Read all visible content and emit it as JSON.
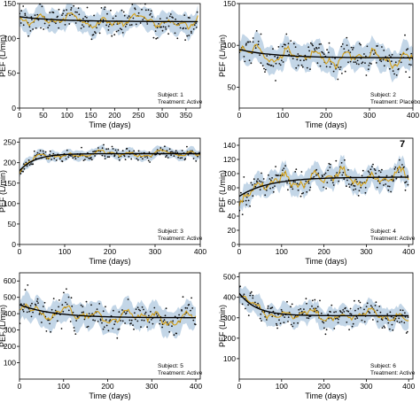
{
  "colors": {
    "band": "#b9cfe3",
    "points": "#111111",
    "smooth": "#d4a017",
    "fit": "#000000",
    "axis": "#000000"
  },
  "chart_data": [
    {
      "type": "scatter",
      "xlabel": "Time (days)",
      "ylabel": "PEF (L/min)",
      "xlim": [
        0,
        380
      ],
      "ylim": [
        0,
        150
      ],
      "xticks": [
        0,
        50,
        100,
        150,
        200,
        250,
        300,
        350
      ],
      "yticks": [
        0,
        50,
        100,
        150
      ],
      "annotations": [
        "Subject: 1",
        "Treatment: Active"
      ],
      "fit": {
        "start": 131,
        "end": 124,
        "rate": 0.012
      },
      "noise": 9,
      "spread": 14,
      "n_points": 190,
      "x_max_data": 375
    },
    {
      "type": "scatter",
      "xlabel": "Time (days)",
      "ylabel": "PEF (L/min)",
      "xlim": [
        0,
        400
      ],
      "ylim": [
        25,
        150
      ],
      "xticks": [
        0,
        100,
        200,
        300,
        400
      ],
      "yticks": [
        50,
        100,
        150
      ],
      "annotations": [
        "Subject: 2",
        "Treatment: Placebo"
      ],
      "fit": {
        "start": 95,
        "end": 85,
        "rate": 0.012
      },
      "noise": 9,
      "spread": 14,
      "n_points": 200,
      "x_max_data": 400
    },
    {
      "type": "scatter",
      "xlabel": "Time (days)",
      "ylabel": "PEF (L/min)",
      "xlim": [
        0,
        400
      ],
      "ylim": [
        0,
        260
      ],
      "xticks": [
        0,
        100,
        200,
        300,
        400
      ],
      "yticks": [
        0,
        50,
        100,
        150,
        200,
        250
      ],
      "annotations": [
        "Subject: 3",
        "Treatment: Active"
      ],
      "fit": {
        "start": 180,
        "end": 222,
        "rate": 0.03
      },
      "noise": 8,
      "spread": 11,
      "n_points": 190,
      "x_max_data": 400
    },
    {
      "type": "scatter",
      "xlabel": "Time (days)",
      "ylabel": "PEF (L/min)",
      "xlim": [
        0,
        410
      ],
      "ylim": [
        0,
        150
      ],
      "xticks": [
        0,
        100,
        200,
        300,
        400
      ],
      "yticks": [
        0,
        20,
        40,
        60,
        80,
        100,
        120,
        140
      ],
      "annotations": [
        "Subject: 4",
        "Treatment: Active"
      ],
      "corner_mark": "7",
      "fit": {
        "start": 68,
        "end": 95,
        "rate": 0.014
      },
      "noise": 11,
      "spread": 14,
      "n_points": 200,
      "x_max_data": 400
    },
    {
      "type": "scatter",
      "xlabel": "Time (days)",
      "ylabel": "PEF (L/min)",
      "xlim": [
        0,
        410
      ],
      "ylim": [
        0,
        650
      ],
      "xticks": [
        0,
        100,
        200,
        300,
        400
      ],
      "yticks": [
        100,
        200,
        300,
        400,
        500,
        600
      ],
      "annotations": [
        "Subject: 5",
        "Treatment: Active"
      ],
      "fit": {
        "start": 455,
        "end": 375,
        "rate": 0.013
      },
      "noise": 40,
      "spread": 70,
      "n_points": 200,
      "x_max_data": 400
    },
    {
      "type": "scatter",
      "xlabel": "Time (days)",
      "ylabel": "PEF (L/min)",
      "xlim": [
        0,
        410
      ],
      "ylim": [
        0,
        520
      ],
      "xticks": [
        0,
        100,
        200,
        300,
        400
      ],
      "yticks": [
        100,
        200,
        300,
        400,
        500
      ],
      "annotations": [
        "Subject: 6",
        "Treatment: Active"
      ],
      "fit": {
        "start": 420,
        "end": 310,
        "rate": 0.025
      },
      "noise": 25,
      "spread": 45,
      "n_points": 200,
      "x_max_data": 400
    }
  ]
}
